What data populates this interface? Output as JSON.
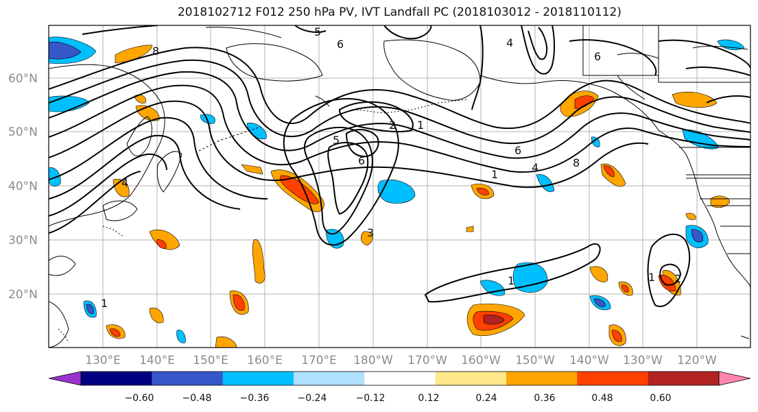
{
  "title": "2018102712 F012 250 hPa PV, IVT Landfall PC (2018103012 - 2018110112)",
  "map": {
    "lat_labels": [
      "60°N",
      "50°N",
      "40°N",
      "30°N",
      "20°N"
    ],
    "lon_labels": [
      "130°E",
      "140°E",
      "150°E",
      "160°E",
      "170°E",
      "180°W",
      "170°W",
      "160°W",
      "150°W",
      "140°W",
      "130°W",
      "120°W"
    ],
    "contour_labels": [
      "6",
      "4",
      "5",
      "8",
      "2",
      "1",
      "6",
      "5",
      "4",
      "6",
      "8",
      "1",
      "1",
      "3",
      "1",
      "1",
      "6",
      "4",
      "2"
    ]
  },
  "colorbar": {
    "ticks": [
      "−0.60",
      "−0.48",
      "−0.36",
      "−0.24",
      "−0.12",
      "0.12",
      "0.24",
      "0.36",
      "0.48",
      "0.60"
    ],
    "colors": [
      "#9a33cc",
      "#000080",
      "#3657c8",
      "#00bfff",
      "#b0e0ff",
      "#ffffff",
      "#ffe88a",
      "#ffa500",
      "#ff4000",
      "#b22222",
      "#ff85b0"
    ]
  },
  "colors": {
    "land_line": "#000000",
    "grid": "#b0b0b0",
    "contour": "#000000"
  }
}
